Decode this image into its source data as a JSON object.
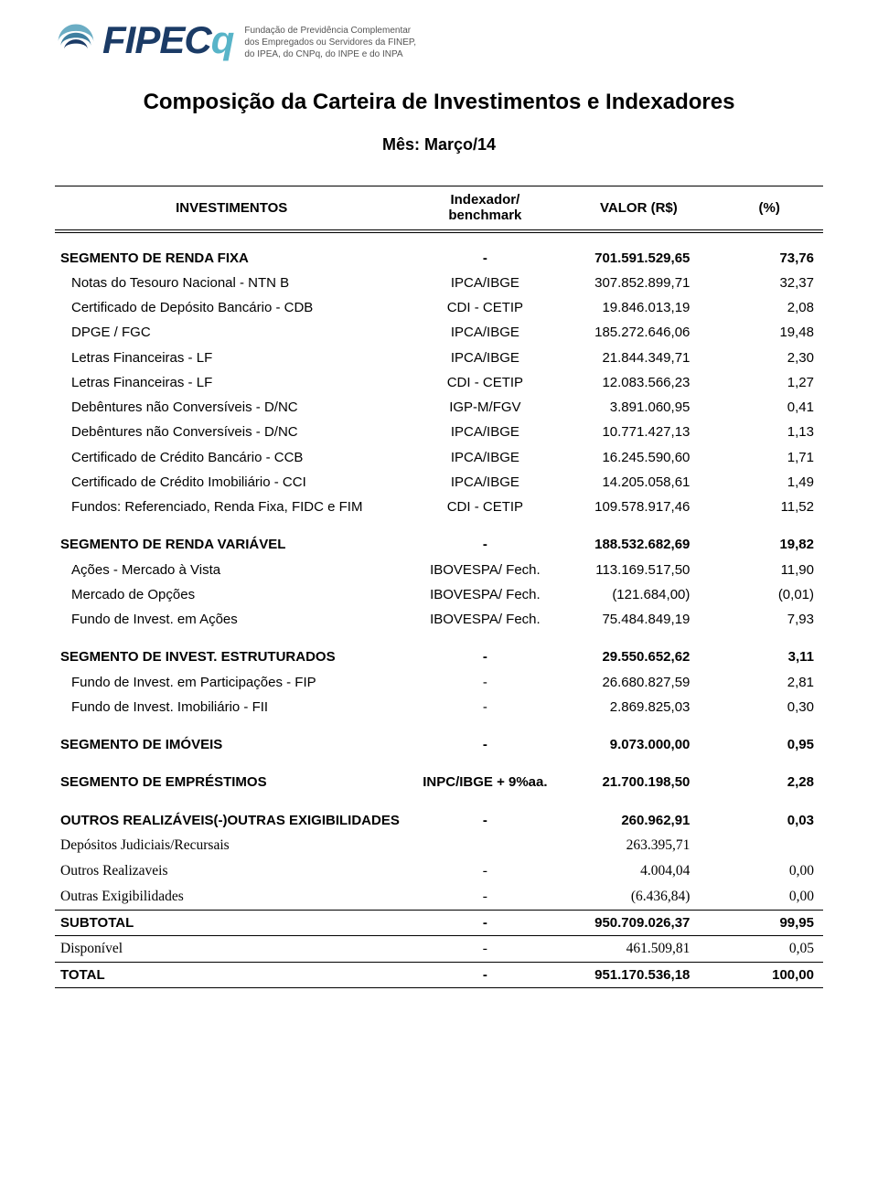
{
  "header": {
    "brand_main": "FIPEC",
    "brand_suffix": "q",
    "subtitle_l1": "Fundação de Previdência Complementar",
    "subtitle_l2": "dos Empregados ou Servidores da FINEP,",
    "subtitle_l3": "do IPEA, do CNPq, do INPE e do INPA"
  },
  "title": "Composição da Carteira de Investimentos e Indexadores",
  "month": "Mês: Março/14",
  "cols": {
    "inv": "INVESTIMENTOS",
    "idx_l1": "Indexador/",
    "idx_l2": "benchmark",
    "val": "VALOR (R$)",
    "pct": "(%)"
  },
  "rows": [
    {
      "label": "SEGMENTO DE RENDA FIXA",
      "idx": "-",
      "val": "701.591.529,65",
      "pct": "73,76",
      "bold": true,
      "gap": true
    },
    {
      "label": "Notas do Tesouro Nacional - NTN B",
      "idx": "IPCA/IBGE",
      "val": "307.852.899,71",
      "pct": "32,37",
      "indent": true
    },
    {
      "label": "Certificado de Depósito Bancário - CDB",
      "idx": "CDI - CETIP",
      "val": "19.846.013,19",
      "pct": "2,08",
      "indent": true
    },
    {
      "label": "DPGE / FGC",
      "idx": "IPCA/IBGE",
      "val": "185.272.646,06",
      "pct": "19,48",
      "indent": true
    },
    {
      "label": " Letras Financeiras - LF",
      "idx": "IPCA/IBGE",
      "val": "21.844.349,71",
      "pct": "2,30",
      "indent": true
    },
    {
      "label": " Letras Financeiras - LF",
      "idx": "CDI - CETIP",
      "val": "12.083.566,23",
      "pct": "1,27",
      "indent": true
    },
    {
      "label": "Debêntures não Conversíveis - D/NC",
      "idx": "IGP-M/FGV",
      "val": "3.891.060,95",
      "pct": "0,41",
      "indent": true
    },
    {
      "label": "Debêntures não Conversíveis - D/NC",
      "idx": "IPCA/IBGE",
      "val": "10.771.427,13",
      "pct": "1,13",
      "indent": true
    },
    {
      "label": "Certificado de Crédito Bancário - CCB",
      "idx": "IPCA/IBGE",
      "val": "16.245.590,60",
      "pct": "1,71",
      "indent": true
    },
    {
      "label": "Certificado de Crédito Imobiliário - CCI",
      "idx": "IPCA/IBGE",
      "val": "14.205.058,61",
      "pct": "1,49",
      "indent": true
    },
    {
      "label": "Fundos: Referenciado, Renda Fixa, FIDC e FIM",
      "idx": "CDI - CETIP",
      "val": "109.578.917,46",
      "pct": "11,52",
      "indent": true
    },
    {
      "label": "SEGMENTO DE RENDA VARIÁVEL",
      "idx": "-",
      "val": "188.532.682,69",
      "pct": "19,82",
      "bold": true,
      "gap": true
    },
    {
      "label": "Ações - Mercado à Vista",
      "idx": "IBOVESPA/ Fech.",
      "val": "113.169.517,50",
      "pct": "11,90",
      "indent": true
    },
    {
      "label": "Mercado de Opções",
      "idx": "IBOVESPA/ Fech.",
      "val": "(121.684,00)",
      "pct": "(0,01)",
      "indent": true
    },
    {
      "label": "Fundo de Invest. em Ações",
      "idx": "IBOVESPA/ Fech.",
      "val": "75.484.849,19",
      "pct": "7,93",
      "indent": true
    },
    {
      "label": "SEGMENTO DE INVEST. ESTRUTURADOS",
      "idx": "-",
      "val": "29.550.652,62",
      "pct": "3,11",
      "bold": true,
      "gap": true
    },
    {
      "label": "Fundo de Invest. em Participações - FIP",
      "idx": "-",
      "val": "26.680.827,59",
      "pct": "2,81",
      "indent": true
    },
    {
      "label": "Fundo de Invest. Imobiliário - FII",
      "idx": "-",
      "val": "2.869.825,03",
      "pct": "0,30",
      "indent": true
    },
    {
      "label": "SEGMENTO DE IMÓVEIS",
      "idx": "-",
      "val": "9.073.000,00",
      "pct": "0,95",
      "bold": true,
      "gap": true
    },
    {
      "label": "SEGMENTO DE EMPRÉSTIMOS",
      "idx": "INPC/IBGE + 9%aa.",
      "val": "21.700.198,50",
      "pct": "2,28",
      "bold": true,
      "gap": true
    },
    {
      "label": "OUTROS REALIZÁVEIS(-)OUTRAS EXIGIBILIDADES",
      "idx": "-",
      "val": "260.962,91",
      "pct": "0,03",
      "bold": true,
      "gap": true
    },
    {
      "label": "Depósitos Judiciais/Recursais",
      "idx": "",
      "val": "263.395,71",
      "pct": "",
      "serif": true
    },
    {
      "label": "Outros Realizaveis",
      "idx": "-",
      "val": "4.004,04",
      "pct": "0,00",
      "serif": true
    },
    {
      "label": "Outras Exigibilidades",
      "idx": "-",
      "val": "(6.436,84)",
      "pct": "0,00",
      "serif": true
    },
    {
      "label": "SUBTOTAL",
      "idx": "-",
      "val": "950.709.026,37",
      "pct": "99,95",
      "bold": true,
      "topBorder": true,
      "botBorder": true
    },
    {
      "label": "Disponível",
      "idx": "-",
      "val": "461.509,81",
      "pct": "0,05",
      "serif": true,
      "botBorder": true
    },
    {
      "label": "TOTAL",
      "idx": "-",
      "val": "951.170.536,18",
      "pct": "100,00",
      "bold": true,
      "botBorder": true
    }
  ]
}
